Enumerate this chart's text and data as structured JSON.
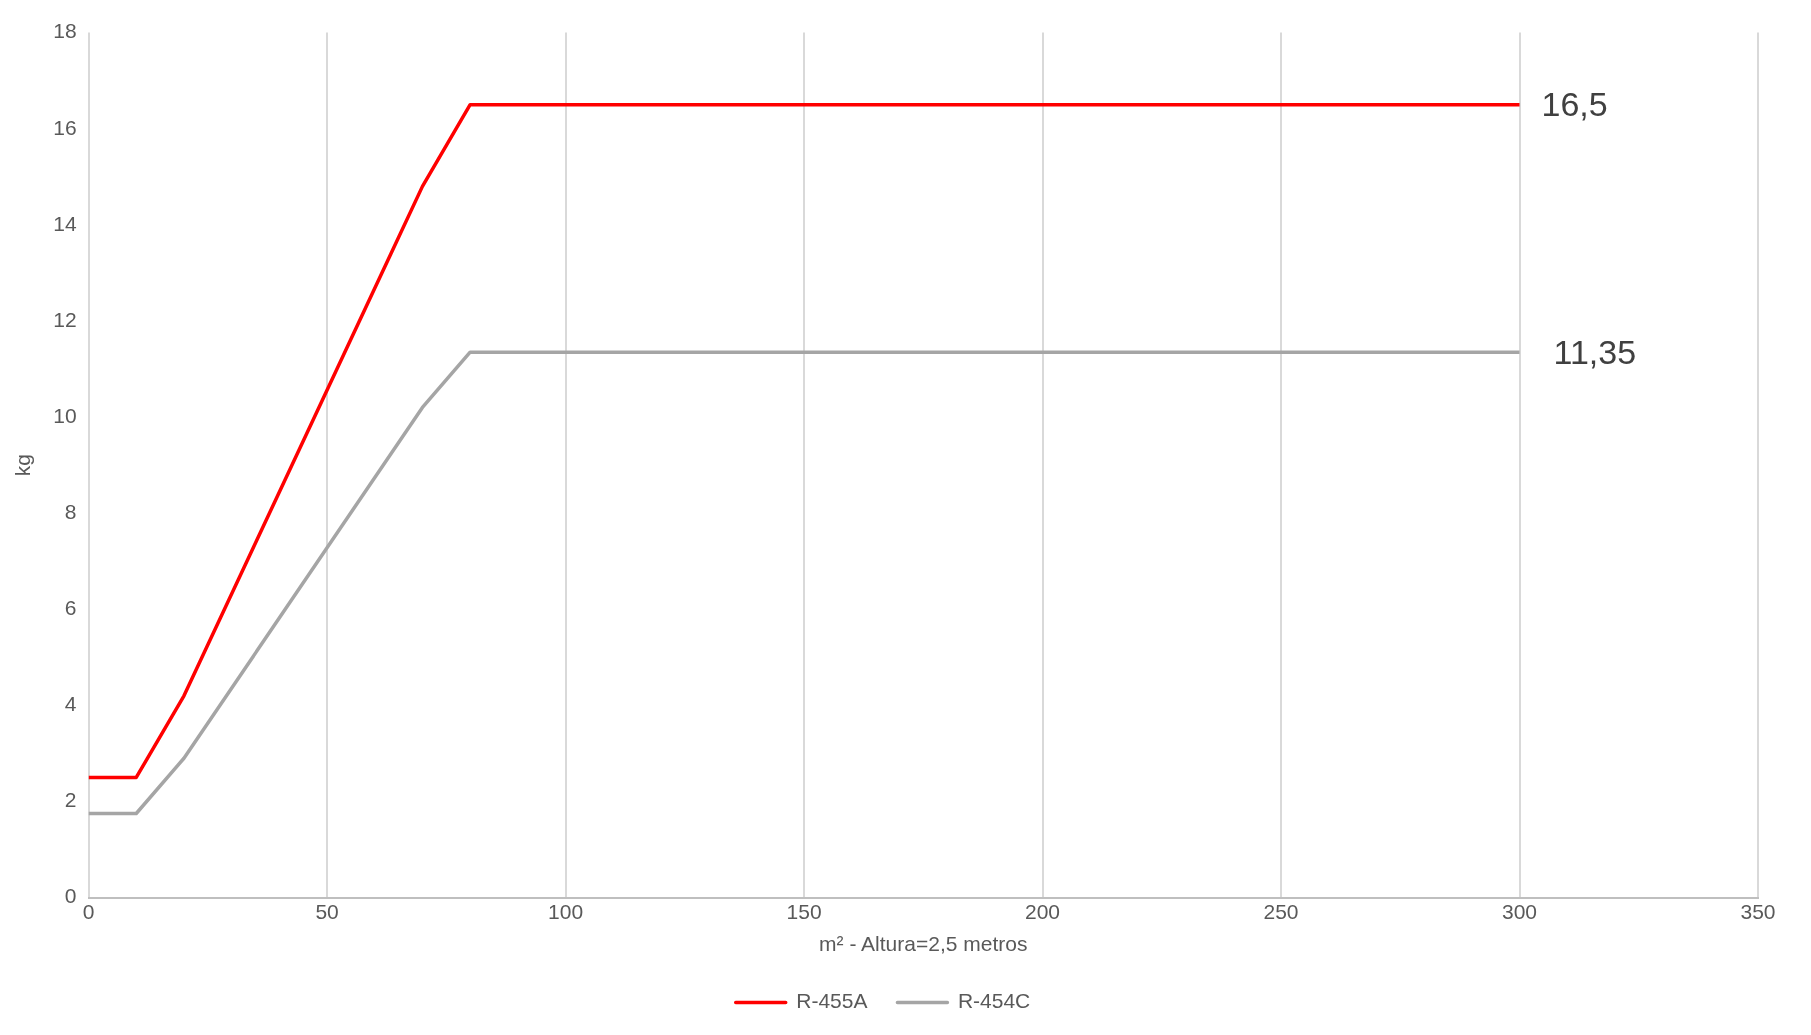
{
  "chart_data": {
    "type": "line",
    "xlabel": "m² - Altura=2,5 metros",
    "ylabel": "kg",
    "x": [
      0,
      10,
      20,
      70,
      80,
      300
    ],
    "series": [
      {
        "name": "R-455A",
        "color": "#ff0000",
        "values": [
          2.5,
          2.5,
          4.2,
          14.8,
          16.5,
          16.5
        ]
      },
      {
        "name": "R-454C",
        "color": "#a5a5a5",
        "values": [
          1.75,
          1.75,
          2.9,
          10.2,
          11.35,
          11.35
        ]
      }
    ],
    "xlim": [
      0,
      350
    ],
    "xticks": [
      0,
      50,
      100,
      150,
      200,
      250,
      300,
      350
    ],
    "ylim": [
      0,
      18
    ],
    "yticks": [
      0,
      2,
      4,
      6,
      8,
      10,
      12,
      14,
      16,
      18
    ],
    "grid": "x",
    "legend": "bottom",
    "marker": "none",
    "line_style": "solid",
    "annotations": [
      {
        "text": "16,5",
        "x": 300,
        "y": 16.5
      },
      {
        "text": "11,35",
        "x": 300,
        "y": 11.35
      }
    ]
  }
}
